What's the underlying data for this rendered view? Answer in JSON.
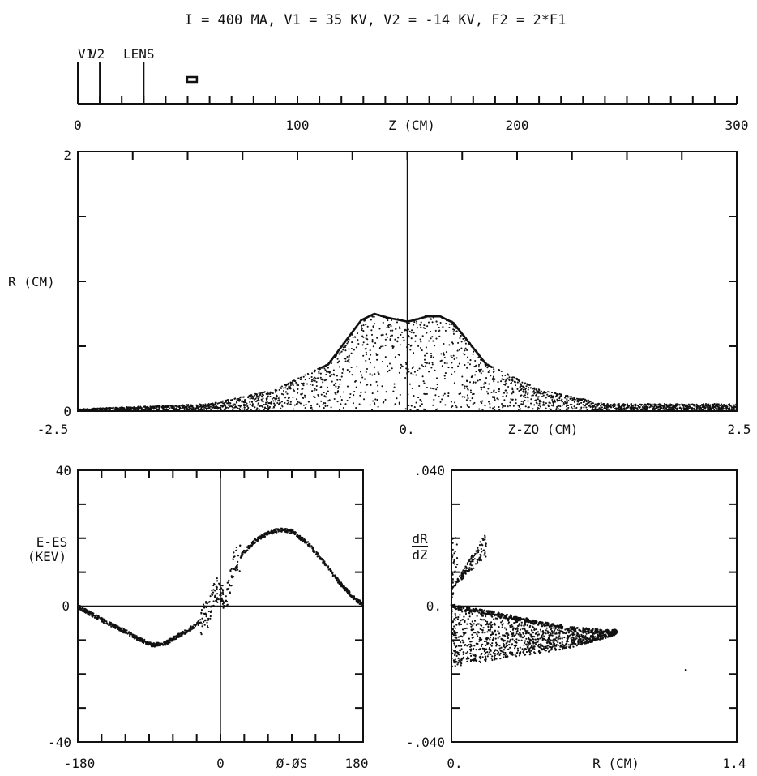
{
  "figure": {
    "title": "I = 400 MA, V1 = 35 KV, V2 = -14 KV, F2 = 2*F1",
    "colors": {
      "ink": "#111111",
      "background": "#ffffff"
    }
  },
  "chart_data": [
    {
      "id": "beamline",
      "type": "scatter",
      "description_axis": "Z (CM)",
      "xlabel": "Z (CM)",
      "xlim": [
        0,
        300
      ],
      "x_tick_labels": [
        "0",
        "100",
        "200",
        "300"
      ],
      "x_tick_step": 10,
      "elements": [
        {
          "label": "V1",
          "z": 0
        },
        {
          "label": "V2",
          "z": 10
        },
        {
          "label": "LENS",
          "z": 30
        }
      ],
      "bunch_marker_z": 52,
      "grid": false
    },
    {
      "id": "r-vs-z",
      "type": "scatter",
      "xlabel": "Z-ZO (CM)",
      "ylabel": "R (CM)",
      "xlim": [
        -2.5,
        2.5
      ],
      "ylim": [
        0,
        2
      ],
      "x_tick_labels": [
        "-2.5",
        "0.",
        "2.5"
      ],
      "y_tick_labels": [
        "0",
        "2"
      ],
      "envelope": {
        "x": [
          -2.5,
          -1.5,
          -1.0,
          -0.6,
          -0.35,
          -0.25,
          -0.15,
          -0.05,
          0.0,
          0.05,
          0.15,
          0.25,
          0.35,
          0.6,
          1.0,
          1.5,
          2.5
        ],
        "y": [
          0.01,
          0.05,
          0.16,
          0.36,
          0.7,
          0.75,
          0.72,
          0.7,
          0.69,
          0.7,
          0.73,
          0.73,
          0.68,
          0.36,
          0.16,
          0.05,
          0.05
        ]
      },
      "grid": false
    },
    {
      "id": "energy-vs-phase",
      "type": "scatter",
      "xlabel": "Ø-ØS",
      "ylabel": "E-ES (KEV)",
      "xlim": [
        -180,
        180
      ],
      "ylim": [
        -40,
        40
      ],
      "x_tick_labels": [
        "-180",
        "0",
        "180"
      ],
      "y_tick_labels": [
        "40",
        "0",
        "-40"
      ],
      "trace": {
        "x": [
          -180,
          -170,
          -150,
          -120,
          -100,
          -85,
          -70,
          -55,
          -40,
          -25,
          -15,
          -10,
          -5,
          0,
          5,
          10,
          15,
          20,
          30,
          45,
          60,
          75,
          90,
          110,
          130,
          150,
          170,
          180
        ],
        "y": [
          0,
          -1.5,
          -4,
          -7.5,
          -10,
          -11.5,
          -11,
          -9,
          -7,
          -4.5,
          -2,
          2,
          5,
          4,
          2,
          5,
          10,
          13,
          16,
          19.5,
          21.5,
          22.5,
          22,
          18.5,
          13,
          7,
          2,
          0.5
        ]
      },
      "grid": false
    },
    {
      "id": "dr-dz-vs-r",
      "type": "scatter",
      "xlabel": "R (CM)",
      "ylabel": "dR/dZ",
      "ylabel_parts": [
        "dR",
        "dZ"
      ],
      "xlim": [
        0,
        1.4
      ],
      "ylim": [
        -0.04,
        0.04
      ],
      "x_tick_labels": [
        "0.",
        "1.4"
      ],
      "y_tick_labels": [
        ".040",
        "0.",
        "-.040"
      ],
      "core_trace": {
        "x": [
          0.0,
          0.1,
          0.2,
          0.3,
          0.4,
          0.5,
          0.6,
          0.7,
          0.75,
          0.8
        ],
        "y": [
          0.0,
          -0.0012,
          -0.0022,
          -0.0034,
          -0.0046,
          -0.0058,
          -0.0068,
          -0.0072,
          -0.0074,
          -0.0076
        ]
      },
      "grid": false
    }
  ]
}
